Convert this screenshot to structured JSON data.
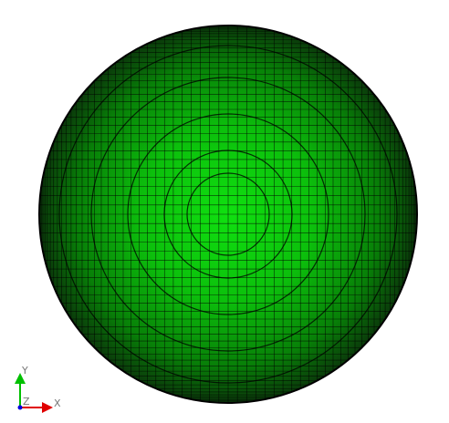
{
  "axes": {
    "x": "X",
    "y": "Y",
    "z": "Z"
  }
}
